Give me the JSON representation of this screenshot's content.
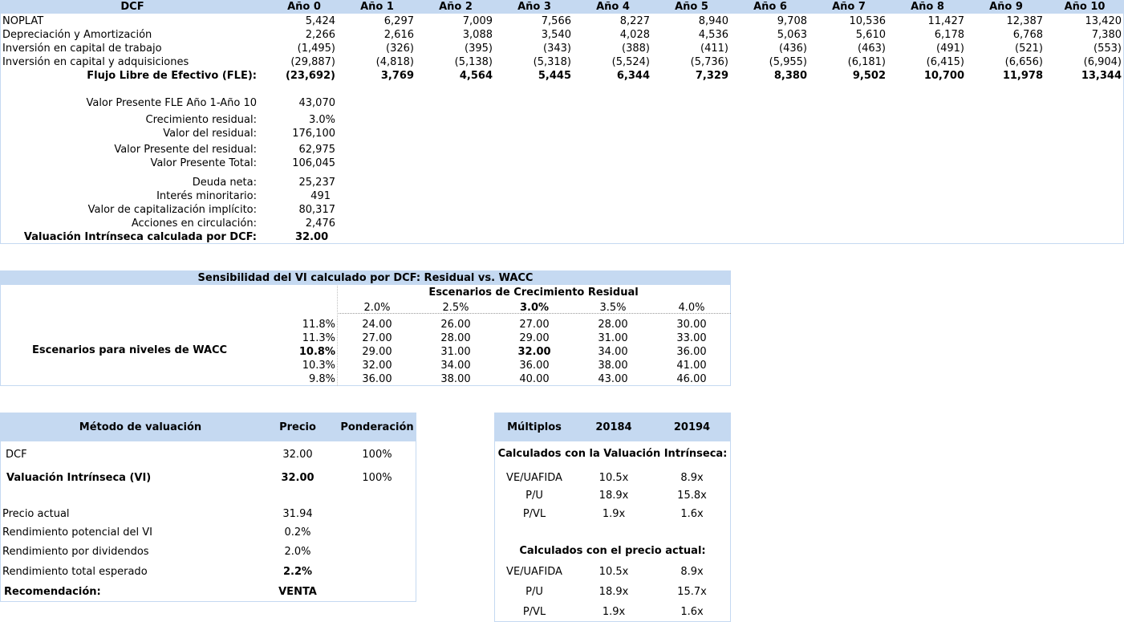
{
  "dcf": {
    "title": "DCF",
    "years": [
      "Año 0",
      "Año 1",
      "Año 2",
      "Año 3",
      "Año 4",
      "Año 5",
      "Año 6",
      "Año 7",
      "Año 8",
      "Año 9",
      "Año 10"
    ],
    "rows": [
      {
        "label": "NOPLAT",
        "values": [
          "5,424",
          "6,297",
          "7,009",
          "7,566",
          "8,227",
          "8,940",
          "9,708",
          "10,536",
          "11,427",
          "12,387",
          "13,420"
        ]
      },
      {
        "label": "Depreciación y Amortización",
        "values": [
          "2,266",
          "2,616",
          "3,088",
          "3,540",
          "4,028",
          "4,536",
          "5,063",
          "5,610",
          "6,178",
          "6,768",
          "7,380"
        ]
      },
      {
        "label": "Inversión en capital de trabajo",
        "values": [
          "(1,495)",
          "(326)",
          "(395)",
          "(343)",
          "(388)",
          "(411)",
          "(436)",
          "(463)",
          "(491)",
          "(521)",
          "(553)"
        ]
      },
      {
        "label": "Inversión en capital y adquisiciones",
        "values": [
          "(29,887)",
          "(4,818)",
          "(5,138)",
          "(5,318)",
          "(5,524)",
          "(5,736)",
          "(5,955)",
          "(6,181)",
          "(6,415)",
          "(6,656)",
          "(6,904)"
        ]
      },
      {
        "label": "Flujo Libre de Efectivo (FLE):",
        "values": [
          "(23,692)",
          "3,769",
          "4,564",
          "5,445",
          "6,344",
          "7,329",
          "8,380",
          "9,502",
          "10,700",
          "11,978",
          "13,344"
        ]
      }
    ],
    "summary": [
      {
        "label": "Valor Presente FLE Año 1-Año 10",
        "value": "43,070"
      },
      {
        "label": "Crecimiento residual:",
        "value": "3.0%"
      },
      {
        "label": "Valor del residual:",
        "value": "176,100"
      },
      {
        "label": "Valor Presente del residual:",
        "value": "62,975"
      },
      {
        "label": "Valor Presente Total:",
        "value": "106,045"
      },
      {
        "label": "Deuda neta:",
        "value": "25,237"
      },
      {
        "label": "Interés minoritario:",
        "value": "491"
      },
      {
        "label": "Valor de capitalización implícito:",
        "value": "80,317"
      },
      {
        "label": "Acciones en circulación:",
        "value": "2,476"
      },
      {
        "label": "Valuación Intrínseca calculada por DCF:",
        "value": "32.00"
      }
    ]
  },
  "sensitivity": {
    "title": "Sensibilidad del VI calculado por DCF: Residual vs. WACC",
    "col_header": "Escenarios de Crecimiento Residual",
    "growth": [
      "2.0%",
      "2.5%",
      "3.0%",
      "3.5%",
      "4.0%"
    ],
    "row_header": "Escenarios para niveles de WACC",
    "wacc": [
      "11.8%",
      "11.3%",
      "10.8%",
      "10.3%",
      "9.8%"
    ],
    "grid": [
      [
        "24.00",
        "26.00",
        "27.00",
        "28.00",
        "30.00"
      ],
      [
        "27.00",
        "28.00",
        "29.00",
        "31.00",
        "33.00"
      ],
      [
        "29.00",
        "31.00",
        "32.00",
        "34.00",
        "36.00"
      ],
      [
        "32.00",
        "34.00",
        "36.00",
        "38.00",
        "41.00"
      ],
      [
        "36.00",
        "38.00",
        "40.00",
        "43.00",
        "46.00"
      ]
    ]
  },
  "valuation": {
    "headers": {
      "method": "Método de valuación",
      "price": "Precio",
      "weight": "Ponderación"
    },
    "rows": [
      {
        "method": "DCF",
        "price": "32.00",
        "weight": "100%"
      },
      {
        "method": "Valuación Intrínseca (VI)",
        "price": "32.00",
        "weight": "100%"
      }
    ],
    "details": [
      {
        "label": "Precio actual",
        "value": "31.94"
      },
      {
        "label": "Rendimiento potencial del VI",
        "value": "0.2%"
      },
      {
        "label": "Rendimiento por dividendos",
        "value": "2.0%"
      },
      {
        "label": "Rendimiento total esperado",
        "value": "2.2%"
      },
      {
        "label": "Recomendación:",
        "value": "VENTA"
      }
    ]
  },
  "multiples": {
    "headers": {
      "label": "Múltiplos",
      "y1": "20184",
      "y2": "20194"
    },
    "section1_title": "Calculados con la Valuación Intrínseca:",
    "section1": [
      {
        "label": "VE/UAFIDA",
        "y1": "10.5x",
        "y2": "8.9x"
      },
      {
        "label": "P/U",
        "y1": "18.9x",
        "y2": "15.8x"
      },
      {
        "label": "P/VL",
        "y1": "1.9x",
        "y2": "1.6x"
      }
    ],
    "section2_title": "Calculados con el precio actual:",
    "section2": [
      {
        "label": "VE/UAFIDA",
        "y1": "10.5x",
        "y2": "8.9x"
      },
      {
        "label": "P/U",
        "y1": "18.9x",
        "y2": "15.7x"
      },
      {
        "label": "P/VL",
        "y1": "1.9x",
        "y2": "1.6x"
      }
    ]
  }
}
